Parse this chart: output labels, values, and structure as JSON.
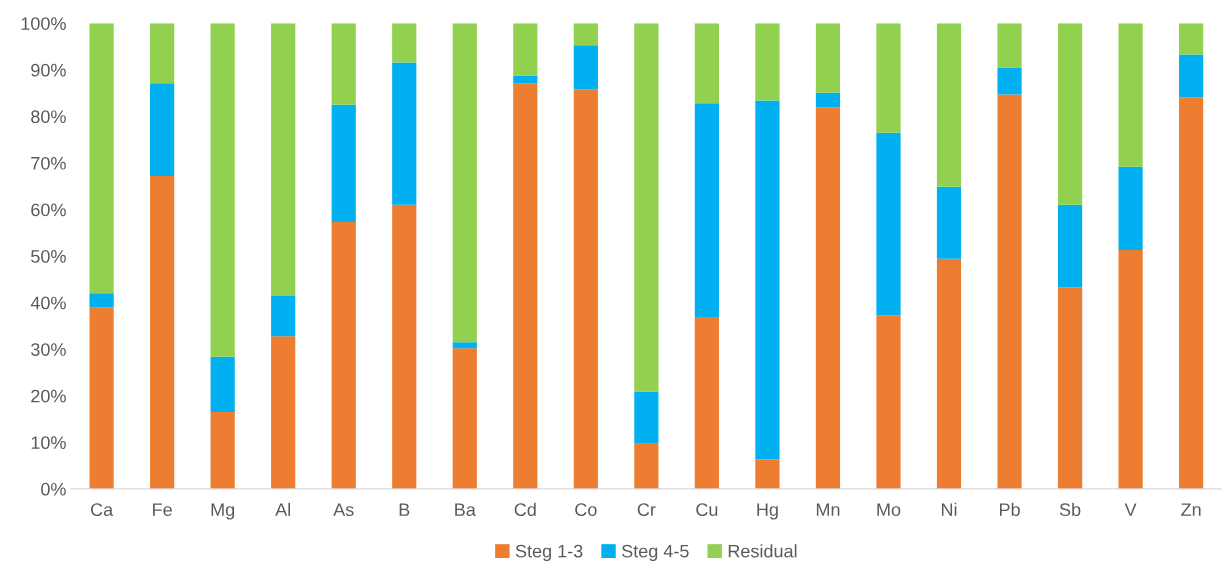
{
  "chart_data": {
    "type": "bar",
    "stacked": true,
    "categories": [
      "Ca",
      "Fe",
      "Mg",
      "Al",
      "As",
      "B",
      "Ba",
      "Cd",
      "Co",
      "Cr",
      "Cu",
      "Hg",
      "Mn",
      "Mo",
      "Ni",
      "Pb",
      "Sb",
      "V",
      "Zn"
    ],
    "series": [
      {
        "name": "Steg 1-3",
        "color": "#ed7d31",
        "values": [
          39.0,
          67.2,
          16.5,
          32.8,
          57.3,
          61.0,
          30.2,
          87.1,
          85.8,
          9.7,
          36.9,
          6.3,
          81.9,
          37.3,
          49.4,
          84.7,
          43.3,
          51.3,
          84.1
        ]
      },
      {
        "name": "Steg 4-5",
        "color": "#00b0f0",
        "values": [
          3.0,
          19.9,
          11.9,
          8.6,
          25.2,
          30.6,
          1.3,
          1.7,
          9.5,
          11.2,
          45.9,
          77.1,
          3.2,
          39.2,
          15.5,
          5.8,
          17.7,
          17.9,
          9.2
        ]
      },
      {
        "name": "Residual",
        "color": "#92d050",
        "values": [
          58.0,
          12.9,
          71.6,
          58.6,
          17.5,
          8.4,
          68.5,
          11.2,
          4.7,
          79.1,
          17.2,
          16.6,
          14.9,
          23.5,
          35.1,
          9.5,
          39.0,
          30.8,
          6.7
        ]
      }
    ],
    "ylim": [
      0,
      100
    ],
    "yticks": [
      {
        "value": 0,
        "label": "0%"
      },
      {
        "value": 10,
        "label": "10%"
      },
      {
        "value": 20,
        "label": "20%"
      },
      {
        "value": 30,
        "label": "30%"
      },
      {
        "value": 40,
        "label": "40%"
      },
      {
        "value": 50,
        "label": "50%"
      },
      {
        "value": 60,
        "label": "60%"
      },
      {
        "value": 70,
        "label": "70%"
      },
      {
        "value": 80,
        "label": "80%"
      },
      {
        "value": 90,
        "label": "90%"
      },
      {
        "value": 100,
        "label": "100%"
      }
    ],
    "grid": false,
    "legend": "bottom"
  }
}
